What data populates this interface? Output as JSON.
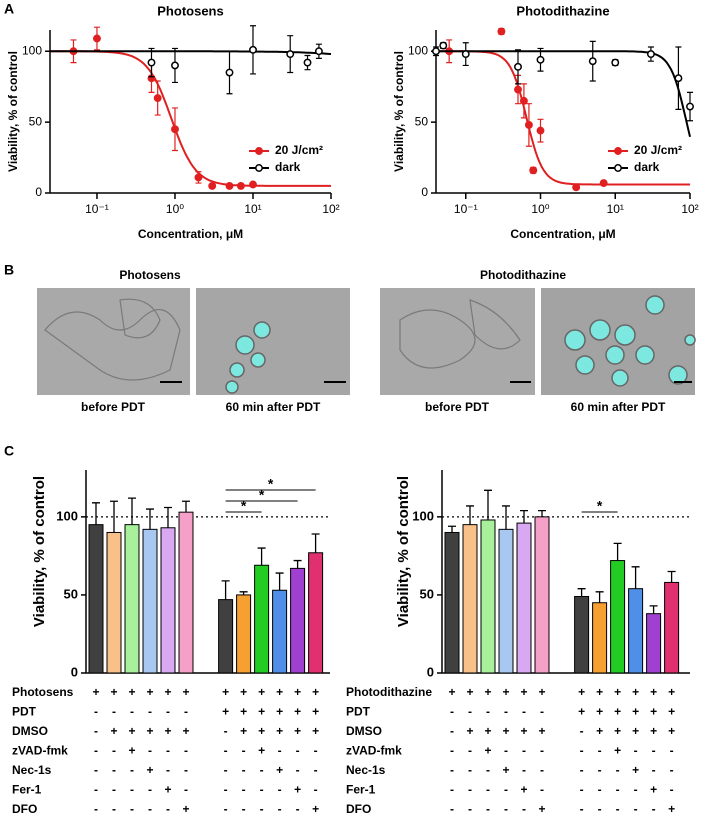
{
  "panel_labels": [
    "A",
    "B",
    "C"
  ],
  "images": {
    "titles": [
      "Photosens",
      "Photodithazine"
    ],
    "captions": [
      "before PDT",
      "60 min after PDT",
      "before PDT",
      "60 min after PDT"
    ]
  },
  "chart_data": [
    {
      "type": "scatter",
      "title": "Photosens",
      "xlabel": "Concentration, μM",
      "ylabel": "Viability, % of control",
      "xscale": "log",
      "legend": "lower right",
      "xlim": [
        0.025,
        100
      ],
      "xticks": [
        {
          "value": 0.1,
          "label": "10⁻¹"
        },
        {
          "value": 1,
          "label": "10⁰"
        },
        {
          "value": 10,
          "label": "10¹"
        },
        {
          "value": 100,
          "label": "10²"
        }
      ],
      "ylim": [
        0,
        115
      ],
      "yticks": [
        0,
        50,
        100
      ],
      "series": [
        {
          "name": "20 J/cm²",
          "color": "#e02020",
          "filled": true,
          "x": [
            0.05,
            0.1,
            0.5,
            0.6,
            1,
            2,
            3,
            5,
            7,
            10
          ],
          "values": [
            100,
            109,
            81,
            67,
            45,
            11,
            5,
            5,
            5,
            6
          ],
          "errors": [
            8,
            8,
            10,
            12,
            15,
            4,
            1,
            1,
            1,
            1
          ],
          "fit": {
            "top": 100,
            "bottom": 5,
            "ec50": 0.9,
            "hill": 2.8
          }
        },
        {
          "name": "dark",
          "color": "#000000",
          "filled": false,
          "x": [
            0.5,
            1,
            5,
            10,
            30,
            50,
            70
          ],
          "values": [
            92,
            90,
            85,
            101,
            98,
            92,
            100
          ],
          "errors": [
            10,
            12,
            15,
            17,
            13,
            5,
            5
          ],
          "fit": {
            "top": 100,
            "bottom": 0,
            "ec50": 5000,
            "hill": 1
          }
        }
      ]
    },
    {
      "type": "scatter",
      "title": "Photodithazine",
      "xlabel": "Concentration, μM",
      "ylabel": "Viability, % of control",
      "xscale": "log",
      "legend": "lower right",
      "xlim": [
        0.04,
        100
      ],
      "xticks": [
        {
          "value": 0.1,
          "label": "10⁻¹"
        },
        {
          "value": 1,
          "label": "10⁰"
        },
        {
          "value": 10,
          "label": "10¹"
        },
        {
          "value": 100,
          "label": "10²"
        }
      ],
      "ylim": [
        0,
        115
      ],
      "yticks": [
        0,
        50,
        100
      ],
      "series": [
        {
          "name": "20 J/cm²",
          "color": "#e02020",
          "filled": true,
          "x": [
            0.06,
            0.3,
            0.5,
            0.6,
            0.7,
            0.8,
            1,
            3,
            7
          ],
          "values": [
            100,
            114,
            73,
            65,
            48,
            16,
            44,
            4,
            7
          ],
          "errors": [
            8,
            2,
            10,
            12,
            15,
            2,
            8,
            1,
            1
          ],
          "fit": {
            "top": 100,
            "bottom": 6,
            "ec50": 0.65,
            "hill": 4
          }
        },
        {
          "name": "dark",
          "color": "#000000",
          "filled": false,
          "x": [
            0.04,
            0.05,
            0.1,
            0.5,
            1,
            5,
            10,
            30,
            70,
            100
          ],
          "values": [
            100,
            104,
            98,
            89,
            94,
            93,
            92,
            98,
            81,
            61
          ],
          "errors": [
            3,
            2,
            8,
            12,
            8,
            14,
            2,
            5,
            22,
            10
          ],
          "fit": {
            "top": 100,
            "bottom": 0,
            "ec50": 90,
            "hill": 4
          }
        }
      ]
    },
    {
      "type": "bar",
      "ylabel": "Viability, % of control",
      "ylim": [
        0,
        130
      ],
      "yticks": [
        0,
        50,
        100
      ],
      "reference_line": 100,
      "values": [
        95,
        90,
        95,
        92,
        93,
        103,
        47,
        50,
        69,
        53,
        67,
        77
      ],
      "errors": [
        14,
        20,
        17,
        13,
        13,
        7,
        12,
        2,
        11,
        11,
        5,
        12
      ],
      "colors": [
        "#404040",
        "#f9c08a",
        "#a8f09c",
        "#a8c8f2",
        "#d8a8f2",
        "#f4a0c8",
        "#404040",
        "#f5a030",
        "#22cc22",
        "#4f8fe8",
        "#a040d0",
        "#e03070"
      ],
      "annotations": [
        {
          "text": "*",
          "from": 6,
          "to": 11
        },
        {
          "text": "*",
          "from": 6,
          "to": 10
        },
        {
          "text": "*",
          "from": 6,
          "to": 8
        }
      ],
      "treatments": [
        {
          "label": "Photosens",
          "marks": [
            "+",
            "+",
            "+",
            "+",
            "+",
            "+",
            "+",
            "+",
            "+",
            "+",
            "+",
            "+"
          ]
        },
        {
          "label": "PDT",
          "marks": [
            "-",
            "-",
            "-",
            "-",
            "-",
            "-",
            "+",
            "+",
            "+",
            "+",
            "+",
            "+"
          ]
        },
        {
          "label": "DMSO",
          "marks": [
            "-",
            "+",
            "+",
            "+",
            "+",
            "+",
            "-",
            "+",
            "+",
            "+",
            "+",
            "+"
          ]
        },
        {
          "label": "zVAD-fmk",
          "marks": [
            "-",
            "-",
            "+",
            "-",
            "-",
            "-",
            "-",
            "-",
            "+",
            "-",
            "-",
            "-"
          ]
        },
        {
          "label": "Nec-1s",
          "marks": [
            "-",
            "-",
            "-",
            "+",
            "-",
            "-",
            "-",
            "-",
            "-",
            "+",
            "-",
            "-"
          ]
        },
        {
          "label": "Fer-1",
          "marks": [
            "-",
            "-",
            "-",
            "-",
            "+",
            "-",
            "-",
            "-",
            "-",
            "-",
            "+",
            "-"
          ]
        },
        {
          "label": "DFO",
          "marks": [
            "-",
            "-",
            "-",
            "-",
            "-",
            "+",
            "-",
            "-",
            "-",
            "-",
            "-",
            "+"
          ]
        }
      ]
    },
    {
      "type": "bar",
      "ylabel": "Viability, % of control",
      "ylim": [
        0,
        130
      ],
      "yticks": [
        0,
        50,
        100
      ],
      "reference_line": 100,
      "values": [
        90,
        95,
        98,
        92,
        96,
        100,
        49,
        45,
        72,
        54,
        38,
        58
      ],
      "errors": [
        4,
        12,
        19,
        15,
        8,
        4,
        5,
        7,
        11,
        14,
        5,
        7
      ],
      "colors": [
        "#404040",
        "#f9c08a",
        "#a8f09c",
        "#a8c8f2",
        "#d8a8f2",
        "#f4a0c8",
        "#404040",
        "#f5a030",
        "#22cc22",
        "#4f8fe8",
        "#a040d0",
        "#e03070"
      ],
      "annotations": [
        {
          "text": "*",
          "from": 6,
          "to": 8
        }
      ],
      "treatments": [
        {
          "label": "Photodithazine",
          "marks": [
            "+",
            "+",
            "+",
            "+",
            "+",
            "+",
            "+",
            "+",
            "+",
            "+",
            "+",
            "+"
          ]
        },
        {
          "label": "PDT",
          "marks": [
            "-",
            "-",
            "-",
            "-",
            "-",
            "-",
            "+",
            "+",
            "+",
            "+",
            "+",
            "+"
          ]
        },
        {
          "label": "DMSO",
          "marks": [
            "-",
            "+",
            "+",
            "+",
            "+",
            "+",
            "-",
            "+",
            "+",
            "+",
            "+",
            "+"
          ]
        },
        {
          "label": "zVAD-fmk",
          "marks": [
            "-",
            "-",
            "+",
            "-",
            "-",
            "-",
            "-",
            "-",
            "+",
            "-",
            "-",
            "-"
          ]
        },
        {
          "label": "Nec-1s",
          "marks": [
            "-",
            "-",
            "-",
            "+",
            "-",
            "-",
            "-",
            "-",
            "-",
            "+",
            "-",
            "-"
          ]
        },
        {
          "label": "Fer-1",
          "marks": [
            "-",
            "-",
            "-",
            "-",
            "+",
            "-",
            "-",
            "-",
            "-",
            "-",
            "+",
            "-"
          ]
        },
        {
          "label": "DFO",
          "marks": [
            "-",
            "-",
            "-",
            "-",
            "-",
            "+",
            "-",
            "-",
            "-",
            "-",
            "-",
            "+"
          ]
        }
      ]
    }
  ]
}
